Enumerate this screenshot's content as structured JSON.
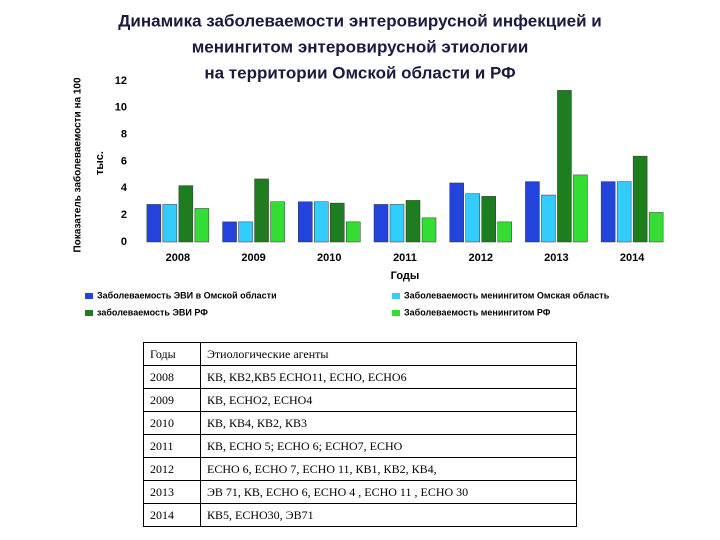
{
  "chart_data": {
    "type": "bar",
    "title": [
      "Динамика заболеваемости энтеровирусной инфекцией и",
      "менингитом энтеровирусной этиологии",
      "на территории Омской области и РФ"
    ],
    "ylabel": [
      "Показатель заболеваемости на 100",
      "тыс."
    ],
    "xlabel": "Годы",
    "categories": [
      "2008",
      "2009",
      "2010",
      "2011",
      "2012",
      "2013",
      "2014"
    ],
    "series": [
      {
        "name": "Заболеваемость ЭВИ в Омской области",
        "color": "#2244dd",
        "values": [
          2.8,
          1.5,
          3.0,
          2.8,
          4.4,
          4.5,
          4.5
        ]
      },
      {
        "name": "Заболеваемость менингитом Омская область",
        "color": "#33ccff",
        "values": [
          2.8,
          1.5,
          3.0,
          2.8,
          3.6,
          3.5,
          4.5
        ]
      },
      {
        "name": "заболеваемость ЭВИ РФ",
        "color": "#1e7d1e",
        "values": [
          4.2,
          4.7,
          2.9,
          3.1,
          3.4,
          11.3,
          6.4
        ]
      },
      {
        "name": "Заболеваемость менингитом РФ",
        "color": "#33dd33",
        "values": [
          2.5,
          3.0,
          1.5,
          1.8,
          1.5,
          5.0,
          2.2
        ]
      }
    ],
    "ylim": [
      0,
      12
    ],
    "yticks": [
      0,
      2,
      4,
      6,
      8,
      10,
      12
    ],
    "grid": false
  },
  "table": {
    "header": [
      "Годы",
      "Этиологические агенты"
    ],
    "rows": [
      [
        "2008",
        "КВ, КВ2,КВ5 ECHO11, ECHO, ECHO6"
      ],
      [
        "2009",
        "КВ, ECHO2, ECHO4"
      ],
      [
        "2010",
        "КВ, КВ4, КВ2, КВ3"
      ],
      [
        "2011",
        "КВ, ECHO 5; ECHO 6; ECHO7, ECHO"
      ],
      [
        "2012",
        "ECHO 6, ECHO 7, ECHO 11, КВ1, КВ2, КВ4,"
      ],
      [
        "2013",
        "ЭВ 71,  КВ, ECHO 6,  ECHO 4 , ECHO 11 ,  ECHO 30"
      ],
      [
        "2014",
        "КВ5, ECHO30, ЭВ71"
      ]
    ]
  }
}
